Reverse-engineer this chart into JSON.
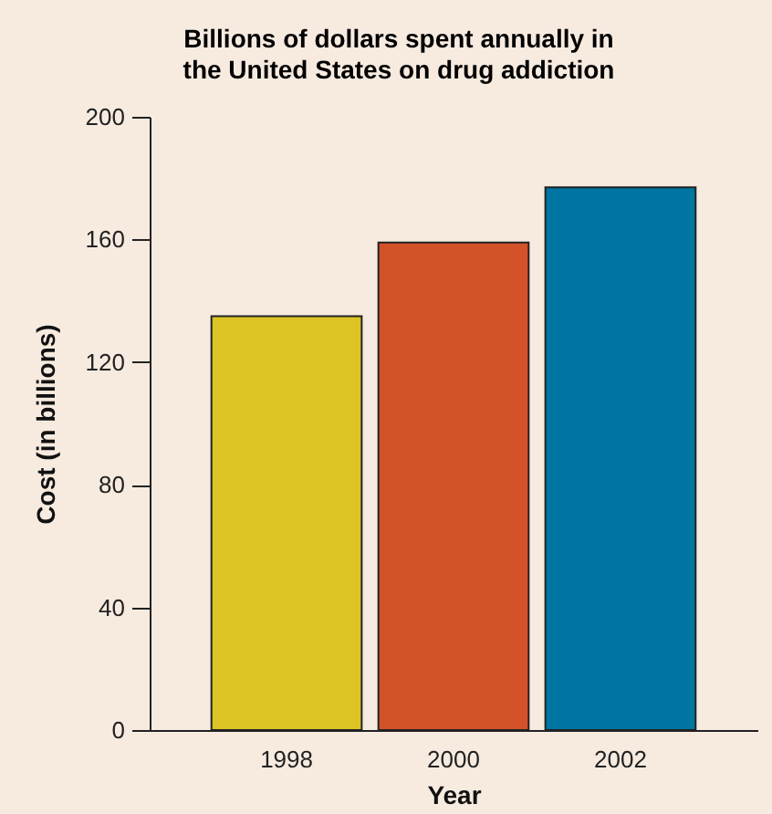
{
  "chart_data": {
    "type": "bar",
    "title": "Billions of dollars spent annually in the United States on drug addiction",
    "xlabel": "Year",
    "ylabel": "Cost (in billions)",
    "categories": [
      "1998",
      "2000",
      "2002"
    ],
    "values": [
      135,
      159,
      177
    ],
    "colors": [
      "#dcc425",
      "#d3522a",
      "#0175a2"
    ],
    "ylim": [
      0,
      200
    ],
    "yticks": [
      0,
      40,
      80,
      120,
      160,
      200
    ],
    "grid": false
  }
}
